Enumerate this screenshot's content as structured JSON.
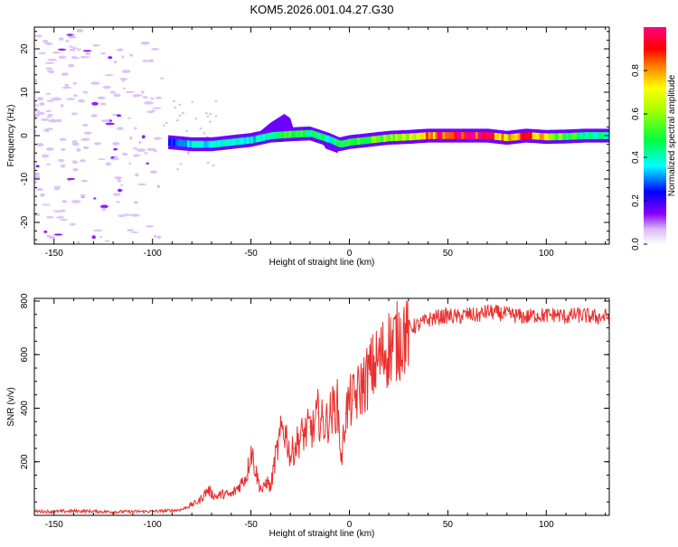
{
  "figure": {
    "title": "KOM5.2026.001.04.27.G30"
  },
  "chart_data": [
    {
      "type": "heatmap",
      "title": "KOM5.2026.001.04.27.G30",
      "xlabel": "Height of straight line (km)",
      "ylabel": "Frequency (Hz)",
      "xlim": [
        -160,
        132
      ],
      "ylim": [
        -25,
        25
      ],
      "xticks": [
        -150,
        -100,
        -50,
        0,
        50,
        100
      ],
      "xtick_labels": [
        "-150",
        "-100",
        "-50",
        "0",
        "50",
        "100"
      ],
      "yticks": [
        -20,
        -10,
        0,
        10,
        20
      ],
      "ytick_labels": [
        "-20",
        "-10",
        "0",
        "10",
        "20"
      ],
      "colorbar": {
        "label": "Normalized spectral amplitude",
        "range": [
          0.0,
          1.0
        ],
        "ticks": [
          0.0,
          0.2,
          0.4,
          0.6,
          0.8
        ],
        "tick_labels": [
          "0.0",
          "0.2",
          "0.4",
          "0.6",
          "0.8"
        ],
        "colormap": [
          "#f0e0ff",
          "#c8a8f0",
          "#8800ff",
          "#0000ff",
          "#00ffff",
          "#00ff00",
          "#ffff00",
          "#ff8000",
          "#ff0000",
          "#ff0080"
        ]
      },
      "signal_ridge": {
        "description_height_km": [
          -92,
          -80,
          -70,
          -60,
          -50,
          -40,
          -30,
          -20,
          -10,
          -5,
          0,
          10,
          20,
          30,
          40,
          50,
          60,
          70,
          80,
          90,
          100,
          110,
          120,
          132
        ],
        "frequency_hz": [
          -1.5,
          -2,
          -2,
          -1.5,
          -1,
          0,
          0.3,
          0.5,
          -1,
          -2,
          -1.5,
          -1,
          -0.5,
          -0.3,
          0,
          0,
          0,
          0,
          -0.5,
          0,
          -0.3,
          -0.2,
          0,
          0
        ],
        "amplitude": [
          0.25,
          0.35,
          0.4,
          0.38,
          0.35,
          0.45,
          0.5,
          0.48,
          0.4,
          0.45,
          0.5,
          0.55,
          0.6,
          0.65,
          0.8,
          0.95,
          0.97,
          0.9,
          0.7,
          0.9,
          0.65,
          0.5,
          0.45,
          0.4
        ]
      },
      "noise_region_km": [
        -160,
        -95
      ]
    },
    {
      "type": "line",
      "xlabel": "Height of straight line (km)",
      "ylabel": "SNR (v/v)",
      "xlim": [
        -160,
        132
      ],
      "ylim": [
        0,
        810
      ],
      "xticks": [
        -150,
        -100,
        -50,
        0,
        50,
        100
      ],
      "xtick_labels": [
        "-150",
        "-100",
        "-50",
        "0",
        "50",
        "100"
      ],
      "yticks": [
        200,
        400,
        600,
        800
      ],
      "ytick_labels": [
        "200",
        "400",
        "600",
        "800"
      ],
      "series": [
        {
          "name": "SNR",
          "color": "#e8302e",
          "x": [
            -160,
            -150,
            -140,
            -130,
            -120,
            -110,
            -100,
            -95,
            -90,
            -85,
            -80,
            -76,
            -72,
            -68,
            -64,
            -60,
            -56,
            -52,
            -50,
            -48,
            -46,
            -44,
            -42,
            -40,
            -38,
            -36,
            -34,
            -32,
            -30,
            -28,
            -26,
            -24,
            -22,
            -20,
            -18,
            -16,
            -14,
            -12,
            -10,
            -8,
            -6,
            -4,
            -2,
            0,
            2,
            4,
            6,
            8,
            10,
            15,
            20,
            25,
            30,
            35,
            40,
            45,
            50,
            55,
            60,
            65,
            70,
            75,
            80,
            85,
            90,
            95,
            100,
            105,
            110,
            115,
            120,
            125,
            132
          ],
          "y": [
            15,
            14,
            16,
            15,
            13,
            14,
            15,
            16,
            18,
            22,
            40,
            55,
            95,
            70,
            80,
            75,
            110,
            150,
            250,
            180,
            120,
            90,
            130,
            100,
            200,
            260,
            330,
            300,
            220,
            250,
            280,
            300,
            310,
            330,
            320,
            380,
            350,
            340,
            370,
            400,
            410,
            200,
            380,
            420,
            430,
            450,
            480,
            500,
            530,
            580,
            630,
            660,
            700,
            710,
            730,
            740,
            745,
            740,
            750,
            745,
            760,
            755,
            750,
            745,
            740,
            748,
            745,
            750,
            740,
            748,
            745,
            740,
            742
          ]
        }
      ]
    }
  ]
}
